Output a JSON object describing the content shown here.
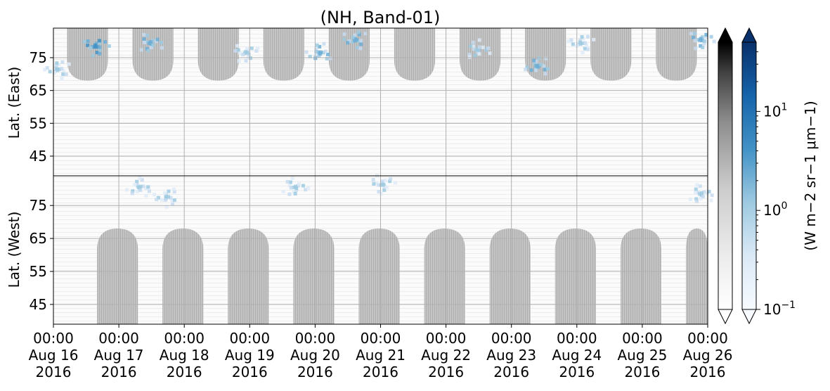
{
  "chart_data": {
    "type": "heatmap",
    "title": "(NH, Band-01)",
    "x": {
      "tick_labels": [
        [
          "00:00",
          "Aug 16",
          "2016"
        ],
        [
          "00:00",
          "Aug 17",
          "2016"
        ],
        [
          "00:00",
          "Aug 18",
          "2016"
        ],
        [
          "00:00",
          "Aug 19",
          "2016"
        ],
        [
          "00:00",
          "Aug 20",
          "2016"
        ],
        [
          "00:00",
          "Aug 21",
          "2016"
        ],
        [
          "00:00",
          "Aug 22",
          "2016"
        ],
        [
          "00:00",
          "Aug 23",
          "2016"
        ],
        [
          "00:00",
          "Aug 24",
          "2016"
        ],
        [
          "00:00",
          "Aug 25",
          "2016"
        ],
        [
          "00:00",
          "Aug 26",
          "2016"
        ]
      ],
      "range": [
        "2016-08-16 00:00",
        "2016-08-26 00:00"
      ]
    },
    "y_east": {
      "label": "Lat. (East)",
      "ticks": [
        45,
        55,
        65,
        75
      ],
      "range": [
        39,
        84
      ]
    },
    "y_west": {
      "label": "Lat. (West)",
      "ticks": [
        75,
        65,
        55,
        45
      ],
      "range": [
        84,
        39
      ]
    },
    "grid": true,
    "colorbars": [
      {
        "colormap": "Greys",
        "extend": "both"
      },
      {
        "colormap": "Blues",
        "extend": "both",
        "scale": "log",
        "range": [
          0.1,
          50
        ],
        "ticks": [
          {
            "value": 0.1,
            "base": "10",
            "exp": "−1"
          },
          {
            "value": 1,
            "base": "10",
            "exp": "0"
          },
          {
            "value": 10,
            "base": "10",
            "exp": "1"
          }
        ],
        "label": "(W m−2 sr−1 μm−1)"
      }
    ],
    "features": {
      "no_data_east": [
        {
          "start": "2016-08-16 05:00",
          "end": "2016-08-16 20:00",
          "min_lat": 68
        },
        {
          "start": "2016-08-17 05:00",
          "end": "2016-08-17 20:00",
          "min_lat": 68
        },
        {
          "start": "2016-08-18 05:00",
          "end": "2016-08-18 20:00",
          "min_lat": 68
        },
        {
          "start": "2016-08-19 05:00",
          "end": "2016-08-19 20:00",
          "min_lat": 68
        },
        {
          "start": "2016-08-20 05:00",
          "end": "2016-08-20 20:00",
          "min_lat": 68
        },
        {
          "start": "2016-08-21 05:00",
          "end": "2016-08-21 20:00",
          "min_lat": 68
        },
        {
          "start": "2016-08-22 05:00",
          "end": "2016-08-22 20:00",
          "min_lat": 68
        },
        {
          "start": "2016-08-23 05:00",
          "end": "2016-08-23 20:00",
          "min_lat": 68
        },
        {
          "start": "2016-08-24 05:00",
          "end": "2016-08-24 20:00",
          "min_lat": 68
        },
        {
          "start": "2016-08-25 05:00",
          "end": "2016-08-25 20:00",
          "min_lat": 68
        }
      ],
      "no_data_west": [
        {
          "start": "2016-08-16 16:00",
          "end": "2016-08-17 07:00",
          "min_lat": 68
        },
        {
          "start": "2016-08-17 16:00",
          "end": "2016-08-18 07:00",
          "min_lat": 68
        },
        {
          "start": "2016-08-18 16:00",
          "end": "2016-08-19 07:00",
          "min_lat": 68
        },
        {
          "start": "2016-08-19 16:00",
          "end": "2016-08-20 07:00",
          "min_lat": 68
        },
        {
          "start": "2016-08-20 16:00",
          "end": "2016-08-21 07:00",
          "min_lat": 68
        },
        {
          "start": "2016-08-21 16:00",
          "end": "2016-08-22 07:00",
          "min_lat": 68
        },
        {
          "start": "2016-08-22 16:00",
          "end": "2016-08-23 07:00",
          "min_lat": 68
        },
        {
          "start": "2016-08-23 16:00",
          "end": "2016-08-24 07:00",
          "min_lat": 68
        },
        {
          "start": "2016-08-24 16:00",
          "end": "2016-08-25 07:00",
          "min_lat": 68
        },
        {
          "start": "2016-08-25 16:00",
          "end": "2016-08-26 00:00",
          "min_lat": 68
        }
      ],
      "radiance_patches": [
        {
          "time": "2016-08-16 01:00",
          "panel": "east",
          "lat": 72,
          "value": 1.5
        },
        {
          "time": "2016-08-16 15:00",
          "panel": "east",
          "lat": 79,
          "value": 6
        },
        {
          "time": "2016-08-17 11:00",
          "panel": "east",
          "lat": 80,
          "value": 3
        },
        {
          "time": "2016-08-17 07:00",
          "panel": "west",
          "lat": 81,
          "value": 1.5
        },
        {
          "time": "2016-08-17 17:00",
          "panel": "west",
          "lat": 78,
          "value": 1.2
        },
        {
          "time": "2016-08-18 22:00",
          "panel": "east",
          "lat": 77,
          "value": 2
        },
        {
          "time": "2016-08-19 16:00",
          "panel": "west",
          "lat": 81,
          "value": 2
        },
        {
          "time": "2016-08-20 01:00",
          "panel": "east",
          "lat": 77,
          "value": 2.5
        },
        {
          "time": "2016-08-20 14:00",
          "panel": "east",
          "lat": 81,
          "value": 4
        },
        {
          "time": "2016-08-21 00:00",
          "panel": "west",
          "lat": 82,
          "value": 2
        },
        {
          "time": "2016-08-22 11:00",
          "panel": "east",
          "lat": 78,
          "value": 2
        },
        {
          "time": "2016-08-23 09:00",
          "panel": "east",
          "lat": 73,
          "value": 2.5
        },
        {
          "time": "2016-08-24 01:00",
          "panel": "east",
          "lat": 80,
          "value": 1.5
        },
        {
          "time": "2016-08-25 21:00",
          "panel": "east",
          "lat": 81,
          "value": 4
        },
        {
          "time": "2016-08-25 21:00",
          "panel": "west",
          "lat": 79,
          "value": 1.5
        }
      ]
    }
  }
}
